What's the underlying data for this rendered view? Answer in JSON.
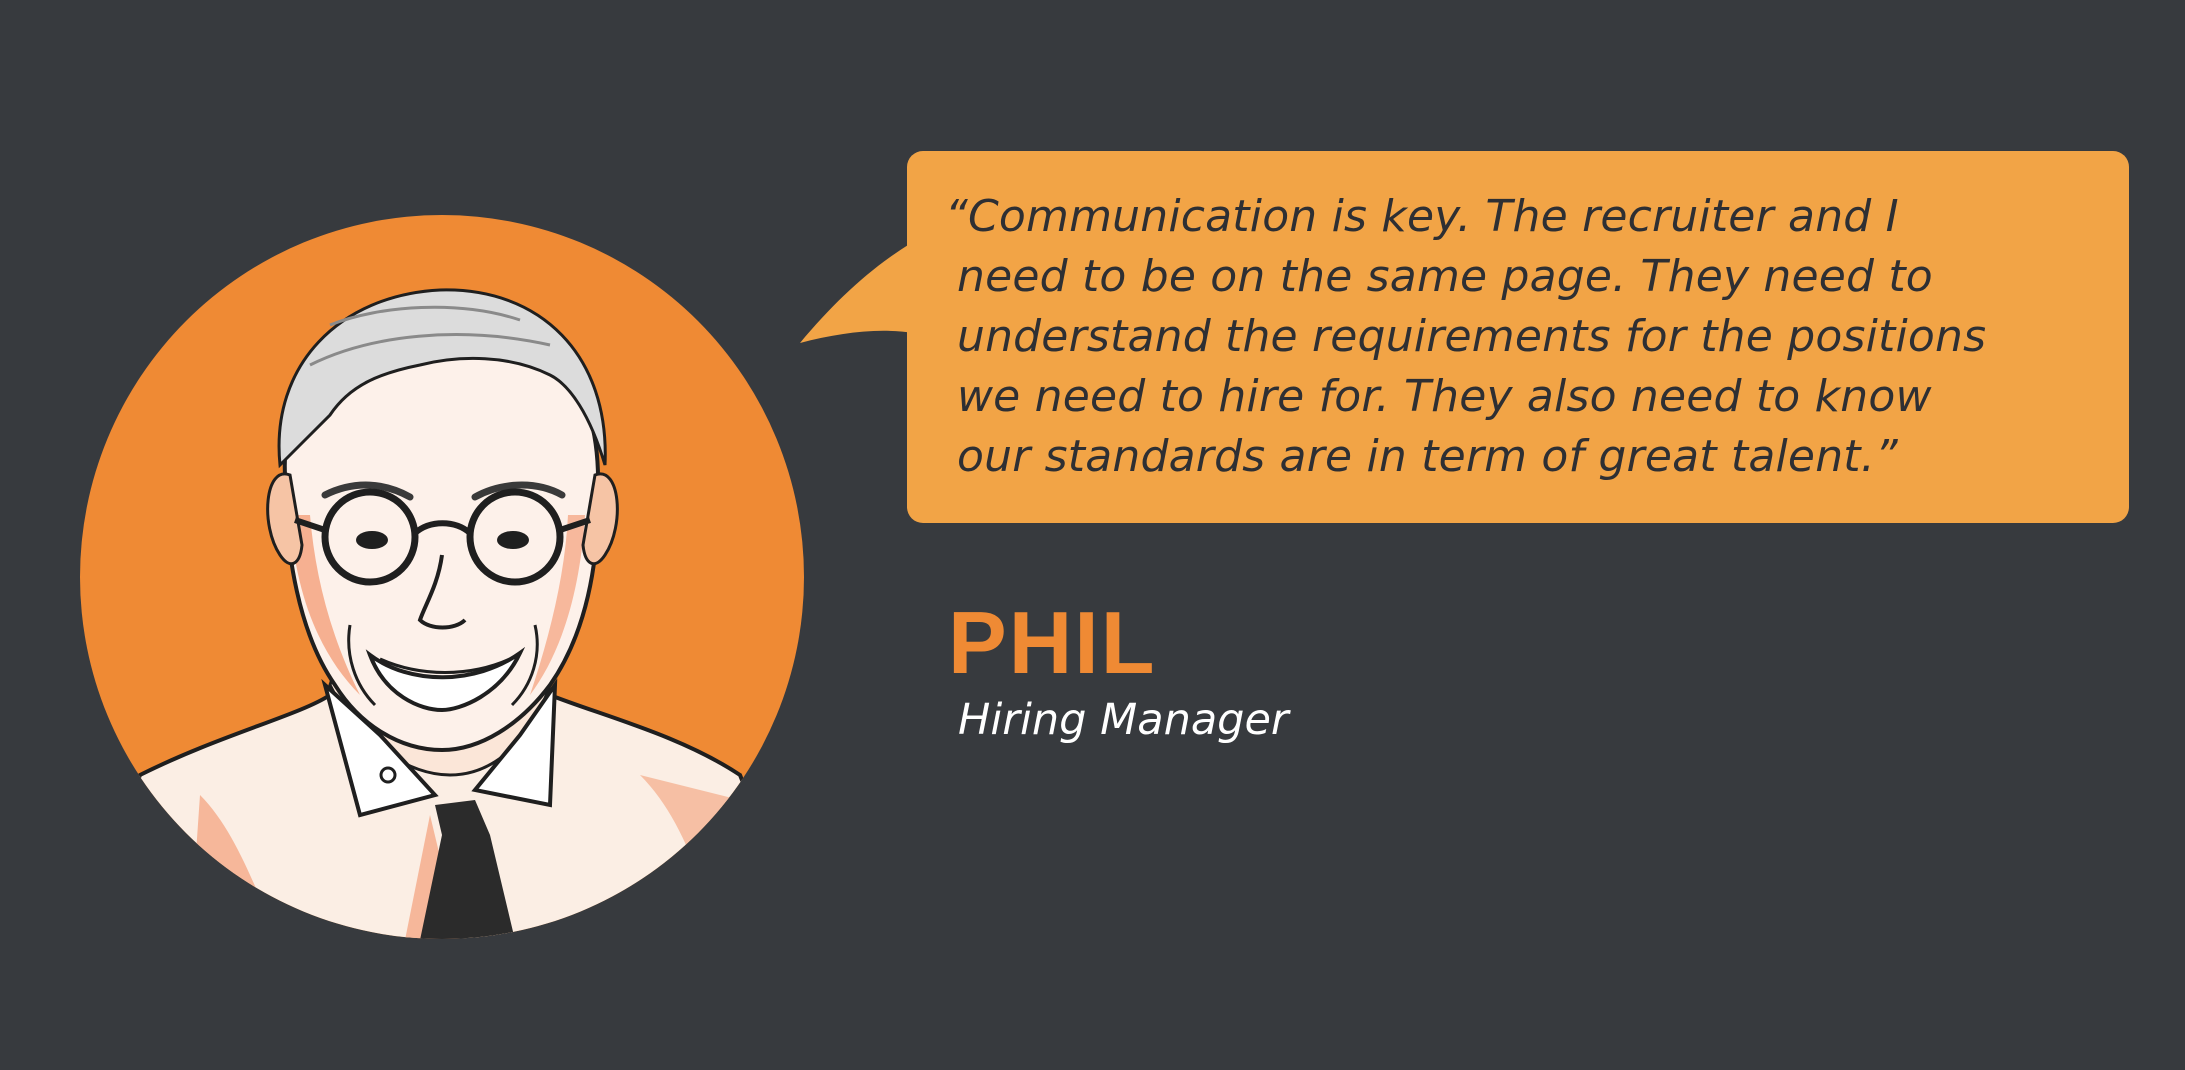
{
  "quote": {
    "lines": [
      "“Communication is key. The recruiter and I",
      "need to be on the same page. They need to",
      "understand the requirements for the positions",
      "we need to hire for. They also need to know",
      "our standards are in term of great talent.”"
    ]
  },
  "person": {
    "name": "PHIL",
    "title": "Hiring Manager"
  },
  "colors": {
    "background": "#373a3e",
    "accent_orange": "#ef8a34",
    "bubble_orange": "#f2a446",
    "quote_text": "#2e2f33",
    "title_text": "#ffffff"
  },
  "icons": {
    "portrait": "man-with-glasses-illustration"
  }
}
